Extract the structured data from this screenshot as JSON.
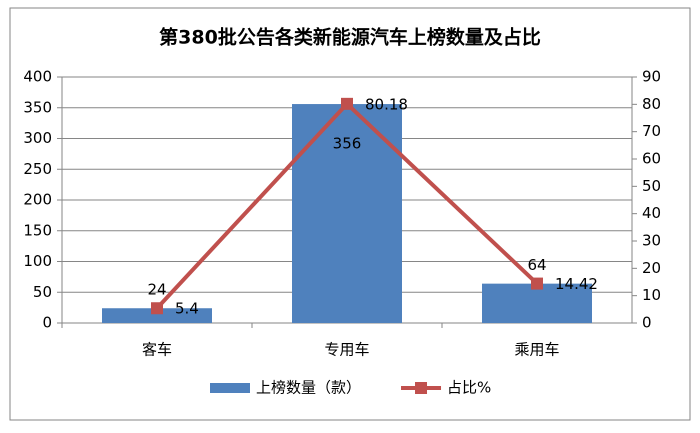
{
  "chart_data": {
    "type": "bar-line",
    "title": "第380批公告各类新能源汽车上榜数量及占比",
    "categories": [
      "客车",
      "专用车",
      "乘用车"
    ],
    "series": [
      {
        "name": "上榜数量（款）",
        "type": "bar",
        "color": "#4f81bd",
        "values": [
          24,
          356,
          64
        ]
      },
      {
        "name": "占比%",
        "type": "line",
        "axis": "y2",
        "color": "#c0504d",
        "values": [
          5.4,
          80.18,
          14.42
        ]
      }
    ],
    "ylim": [
      0,
      400
    ],
    "yticks": [
      0,
      50,
      100,
      150,
      200,
      250,
      300,
      350,
      400
    ],
    "y2lim": [
      0,
      90
    ],
    "y2ticks": [
      0,
      10,
      20,
      30,
      40,
      50,
      60,
      70,
      80,
      90
    ],
    "grid": true,
    "legend": "bottom"
  }
}
